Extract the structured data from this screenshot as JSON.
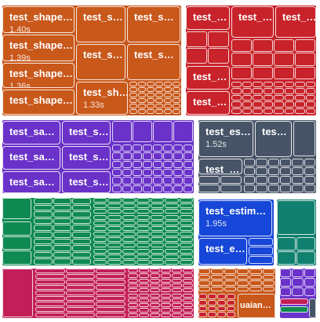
{
  "colors": {
    "orange": "#c9581b",
    "red": "#c8232a",
    "purple": "#6a32c9",
    "slate": "#475467",
    "green": "#0f8a52",
    "blue": "#1747d8",
    "teal": "#12806f",
    "crimson": "#c21f58",
    "border": "#ffffff"
  },
  "tests": [
    {
      "name": "test_shape…",
      "time": "1.40s"
    },
    {
      "name": "test_shape…",
      "time": "1.39s"
    },
    {
      "name": "test_shape…",
      "time": "1.36s"
    },
    {
      "name": "test_shape…",
      "time": ""
    },
    {
      "name": "test_s…",
      "time": ""
    },
    {
      "name": "test_s…",
      "time": ""
    },
    {
      "name": "test_s…",
      "time": ""
    },
    {
      "name": "test_s…",
      "time": ""
    },
    {
      "name": "test_sh…",
      "time": "1.33s"
    },
    {
      "name": "test_…",
      "time": ""
    },
    {
      "name": "test_…",
      "time": ""
    },
    {
      "name": "test_…",
      "time": ""
    },
    {
      "name": "test_…",
      "time": ""
    },
    {
      "name": "test_…",
      "time": ""
    },
    {
      "name": "test_sa…",
      "time": ""
    },
    {
      "name": "test_s…",
      "time": ""
    },
    {
      "name": "test_sa…",
      "time": ""
    },
    {
      "name": "test_s…",
      "time": ""
    },
    {
      "name": "test_sa…",
      "time": ""
    },
    {
      "name": "test_s…",
      "time": ""
    },
    {
      "name": "test_es…",
      "time": "1.52s"
    },
    {
      "name": "tes…",
      "time": ""
    },
    {
      "name": "test_…",
      "time": ""
    },
    {
      "name": "test_estim…",
      "time": "1.95s"
    },
    {
      "name": "test_e…",
      "time": ""
    }
  ],
  "bottom_label": "uaian…"
}
